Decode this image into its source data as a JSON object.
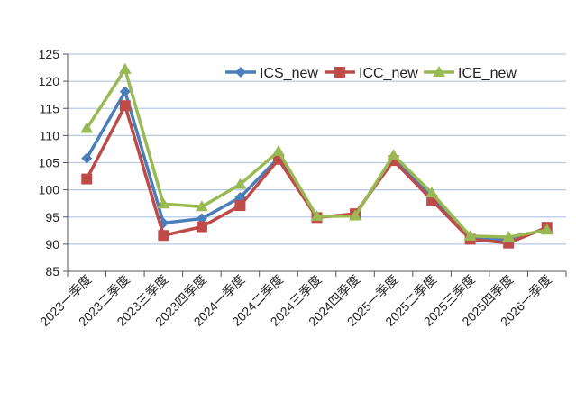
{
  "chart_data": {
    "type": "line",
    "title": "",
    "xlabel": "",
    "ylabel": "",
    "ylim": [
      85,
      125
    ],
    "yticks": [
      85,
      90,
      95,
      100,
      105,
      110,
      115,
      120,
      125
    ],
    "grid": true,
    "legend_position": "top-right",
    "categories": [
      "2023一季度",
      "2023二季度",
      "2023三季度",
      "2023四季度",
      "2024一季度",
      "2024二季度",
      "2024三季度",
      "2024四季度",
      "2025一季度",
      "2025二季度",
      "2025三季度",
      "2025四季度",
      "2026一季度"
    ],
    "series": [
      {
        "name": "ICS_new",
        "color": "#4a7ebb",
        "marker": "diamond",
        "values": [
          105.8,
          118.1,
          93.9,
          94.7,
          98.6,
          105.9,
          95.0,
          95.4,
          105.8,
          98.8,
          91.2,
          90.7,
          92.8
        ]
      },
      {
        "name": "ICC_new",
        "color": "#be4b48",
        "marker": "square",
        "values": [
          102.0,
          115.5,
          91.6,
          93.2,
          97.1,
          105.6,
          94.9,
          95.6,
          105.4,
          98.1,
          90.9,
          90.2,
          93.1
        ]
      },
      {
        "name": "ICE_new",
        "color": "#98b954",
        "marker": "triangle",
        "values": [
          111.3,
          122.2,
          97.4,
          96.9,
          101.0,
          107.1,
          95.1,
          95.2,
          106.4,
          99.4,
          91.5,
          91.3,
          92.6
        ]
      }
    ]
  }
}
